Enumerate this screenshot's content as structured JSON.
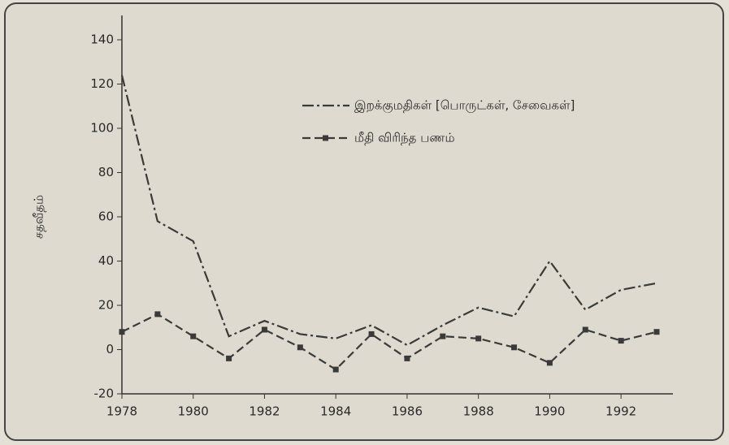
{
  "chart_data": {
    "type": "line",
    "ylabel": "சதவீதம்",
    "x": [
      1978,
      1979,
      1980,
      1981,
      1982,
      1983,
      1984,
      1985,
      1986,
      1987,
      1988,
      1989,
      1990,
      1991,
      1992,
      1993
    ],
    "series": [
      {
        "name": "இறக்குமதிகள் [பொருட்கள், சேவைகள்]",
        "color": "#3a3a3a",
        "style": "dashdot",
        "marker": "none",
        "values": [
          124,
          58,
          49,
          6,
          13,
          7,
          5,
          11,
          2,
          11,
          19,
          15,
          40,
          18,
          27,
          30
        ]
      },
      {
        "name": "மீதி விரிந்த பணம்",
        "color": "#3a3a3a",
        "style": "dashed",
        "marker": "square",
        "values": [
          8,
          16,
          6,
          -4,
          9,
          1,
          -9,
          7,
          -4,
          6,
          5,
          1,
          -6,
          9,
          4,
          8
        ]
      }
    ],
    "xlim": [
      1978,
      1993
    ],
    "xticks": [
      1978,
      1980,
      1982,
      1984,
      1986,
      1988,
      1990,
      1992
    ],
    "ylim": [
      -20,
      140
    ],
    "yticks": [
      -20,
      0,
      20,
      40,
      60,
      80,
      100,
      120,
      140
    ],
    "grid": false,
    "legend": "upper center"
  }
}
